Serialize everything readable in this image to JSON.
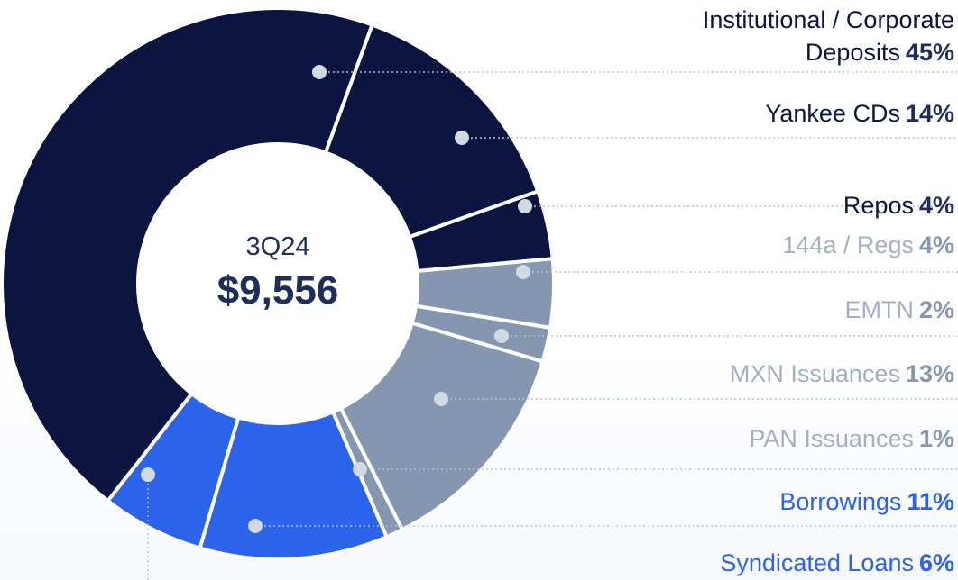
{
  "chart_data": {
    "type": "donut",
    "center_label": "3Q24",
    "total": "$9,556",
    "categories": [
      "Institutional / Corporate Deposits",
      "Yankee CDs",
      "Repos",
      "144a / Regs",
      "EMTN",
      "MXN Issuances",
      "PAN Issuances",
      "Borrowings",
      "Syndicated Loans"
    ],
    "values": [
      45,
      14,
      4,
      4,
      2,
      13,
      1,
      11,
      6
    ],
    "value_labels": [
      "45%",
      "14%",
      "4%",
      "4%",
      "2%",
      "13%",
      "1%",
      "11%",
      "6%"
    ],
    "colors": [
      "#0b1540",
      "#0b1540",
      "#0b1540",
      "#8597b0",
      "#8597b0",
      "#8597b0",
      "#8597b0",
      "#2b63ea",
      "#2b63ea"
    ]
  }
}
